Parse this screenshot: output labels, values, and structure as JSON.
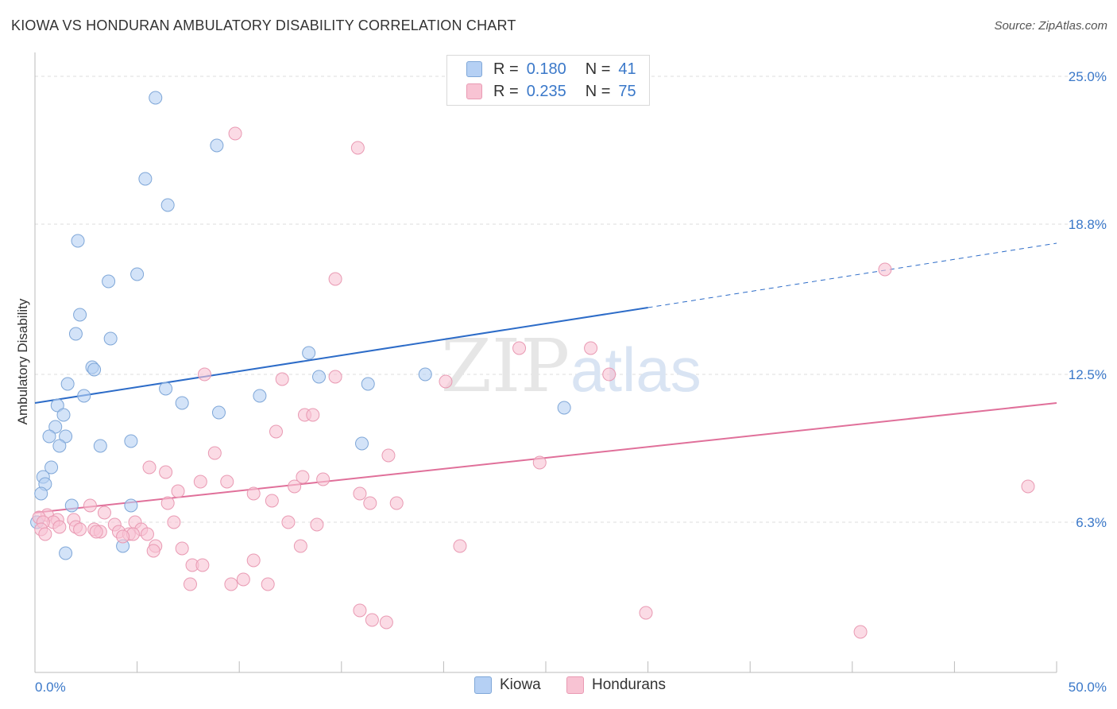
{
  "title": "KIOWA VS HONDURAN AMBULATORY DISABILITY CORRELATION CHART",
  "source": "Source: ZipAtlas.com",
  "watermark": {
    "zip": "ZIP",
    "atlas": "atlas"
  },
  "legend_top": [
    {
      "r_label": "R =",
      "r_value": "0.180",
      "n_label": "N =",
      "n_value": "41"
    },
    {
      "r_label": "R =",
      "r_value": "0.235",
      "n_label": "N =",
      "n_value": "75"
    }
  ],
  "colors": {
    "kiowa_fill": "#b5d0f4",
    "kiowa_stroke": "#7fa7d8",
    "kiowa_line": "#2d6cc8",
    "honduran_fill": "#f8c3d3",
    "honduran_stroke": "#e99ab3",
    "honduran_line": "#e0709a",
    "tick_label": "#3a78c9",
    "grid": "#dddddd"
  },
  "chart_data": {
    "type": "scatter",
    "title": "KIOWA VS HONDURAN AMBULATORY DISABILITY CORRELATION CHART",
    "xlabel": "",
    "ylabel": "Ambulatory Disability",
    "xlim": [
      0,
      50
    ],
    "ylim": [
      0,
      25.6
    ],
    "x_tick_labels": [
      "0.0%",
      "50.0%"
    ],
    "y_ticks": [
      6.3,
      12.5,
      18.8,
      25.0
    ],
    "y_tick_labels": [
      "6.3%",
      "12.5%",
      "18.8%",
      "25.0%"
    ],
    "legend": [
      "Kiowa",
      "Hondurans"
    ],
    "series": [
      {
        "name": "Kiowa",
        "r": 0.18,
        "n": 41,
        "trend": {
          "x0": 0,
          "y0": 11.3,
          "x1": 30,
          "y1": 15.3,
          "dash_to_x": 50,
          "dash_to_y": 18.0
        },
        "points": [
          [
            5.9,
            24.1
          ],
          [
            8.9,
            22.1
          ],
          [
            5.4,
            20.7
          ],
          [
            6.5,
            19.6
          ],
          [
            2.1,
            18.1
          ],
          [
            5.0,
            16.7
          ],
          [
            3.6,
            16.4
          ],
          [
            2.2,
            15.0
          ],
          [
            2.0,
            14.2
          ],
          [
            3.7,
            14.0
          ],
          [
            13.4,
            13.4
          ],
          [
            2.8,
            12.8
          ],
          [
            2.9,
            12.7
          ],
          [
            19.1,
            12.5
          ],
          [
            13.9,
            12.4
          ],
          [
            1.6,
            12.1
          ],
          [
            16.3,
            12.1
          ],
          [
            6.4,
            11.9
          ],
          [
            2.4,
            11.6
          ],
          [
            11.0,
            11.6
          ],
          [
            7.2,
            11.3
          ],
          [
            1.1,
            11.2
          ],
          [
            25.9,
            11.1
          ],
          [
            9.0,
            10.9
          ],
          [
            1.4,
            10.8
          ],
          [
            1.0,
            10.3
          ],
          [
            0.7,
            9.9
          ],
          [
            1.5,
            9.9
          ],
          [
            4.7,
            9.7
          ],
          [
            16.0,
            9.6
          ],
          [
            3.2,
            9.5
          ],
          [
            1.2,
            9.5
          ],
          [
            0.8,
            8.6
          ],
          [
            0.4,
            8.2
          ],
          [
            0.5,
            7.9
          ],
          [
            0.3,
            7.5
          ],
          [
            1.8,
            7.0
          ],
          [
            4.7,
            7.0
          ],
          [
            0.1,
            6.3
          ],
          [
            1.5,
            5.0
          ],
          [
            4.3,
            5.3
          ]
        ]
      },
      {
        "name": "Hondurans",
        "r": 0.235,
        "n": 75,
        "trend": {
          "x0": 0,
          "y0": 6.7,
          "x1": 50,
          "y1": 11.3
        },
        "points": [
          [
            9.8,
            22.6
          ],
          [
            15.8,
            22.0
          ],
          [
            41.6,
            16.9
          ],
          [
            14.7,
            16.5
          ],
          [
            23.7,
            13.6
          ],
          [
            27.2,
            13.6
          ],
          [
            8.3,
            12.5
          ],
          [
            28.1,
            12.5
          ],
          [
            14.7,
            12.4
          ],
          [
            12.1,
            12.3
          ],
          [
            20.1,
            12.2
          ],
          [
            13.2,
            10.8
          ],
          [
            13.6,
            10.8
          ],
          [
            11.8,
            10.1
          ],
          [
            8.8,
            9.2
          ],
          [
            17.3,
            9.1
          ],
          [
            24.7,
            8.8
          ],
          [
            5.6,
            8.6
          ],
          [
            6.4,
            8.4
          ],
          [
            13.1,
            8.2
          ],
          [
            14.1,
            8.1
          ],
          [
            8.1,
            8.0
          ],
          [
            9.4,
            8.0
          ],
          [
            12.7,
            7.8
          ],
          [
            48.6,
            7.8
          ],
          [
            7.0,
            7.6
          ],
          [
            10.7,
            7.5
          ],
          [
            15.9,
            7.5
          ],
          [
            11.6,
            7.2
          ],
          [
            16.4,
            7.1
          ],
          [
            17.7,
            7.1
          ],
          [
            6.5,
            7.1
          ],
          [
            2.7,
            7.0
          ],
          [
            3.4,
            6.7
          ],
          [
            0.6,
            6.6
          ],
          [
            0.2,
            6.5
          ],
          [
            1.1,
            6.4
          ],
          [
            1.9,
            6.4
          ],
          [
            0.9,
            6.3
          ],
          [
            4.9,
            6.3
          ],
          [
            0.4,
            6.3
          ],
          [
            12.4,
            6.3
          ],
          [
            6.8,
            6.3
          ],
          [
            13.8,
            6.2
          ],
          [
            3.9,
            6.2
          ],
          [
            1.2,
            6.1
          ],
          [
            2.0,
            6.1
          ],
          [
            2.2,
            6.0
          ],
          [
            2.9,
            6.0
          ],
          [
            5.2,
            6.0
          ],
          [
            0.3,
            6.0
          ],
          [
            3.2,
            5.9
          ],
          [
            4.1,
            5.9
          ],
          [
            3.0,
            5.9
          ],
          [
            4.6,
            5.8
          ],
          [
            5.5,
            5.8
          ],
          [
            4.8,
            5.8
          ],
          [
            0.5,
            5.8
          ],
          [
            4.3,
            5.7
          ],
          [
            5.9,
            5.3
          ],
          [
            5.8,
            5.1
          ],
          [
            13.0,
            5.3
          ],
          [
            20.8,
            5.3
          ],
          [
            7.2,
            5.2
          ],
          [
            10.7,
            4.7
          ],
          [
            7.7,
            4.5
          ],
          [
            8.2,
            4.5
          ],
          [
            10.2,
            3.9
          ],
          [
            9.6,
            3.7
          ],
          [
            11.4,
            3.7
          ],
          [
            7.6,
            3.7
          ],
          [
            15.9,
            2.6
          ],
          [
            16.5,
            2.2
          ],
          [
            17.2,
            2.1
          ],
          [
            29.9,
            2.5
          ],
          [
            40.4,
            1.7
          ]
        ]
      }
    ]
  }
}
